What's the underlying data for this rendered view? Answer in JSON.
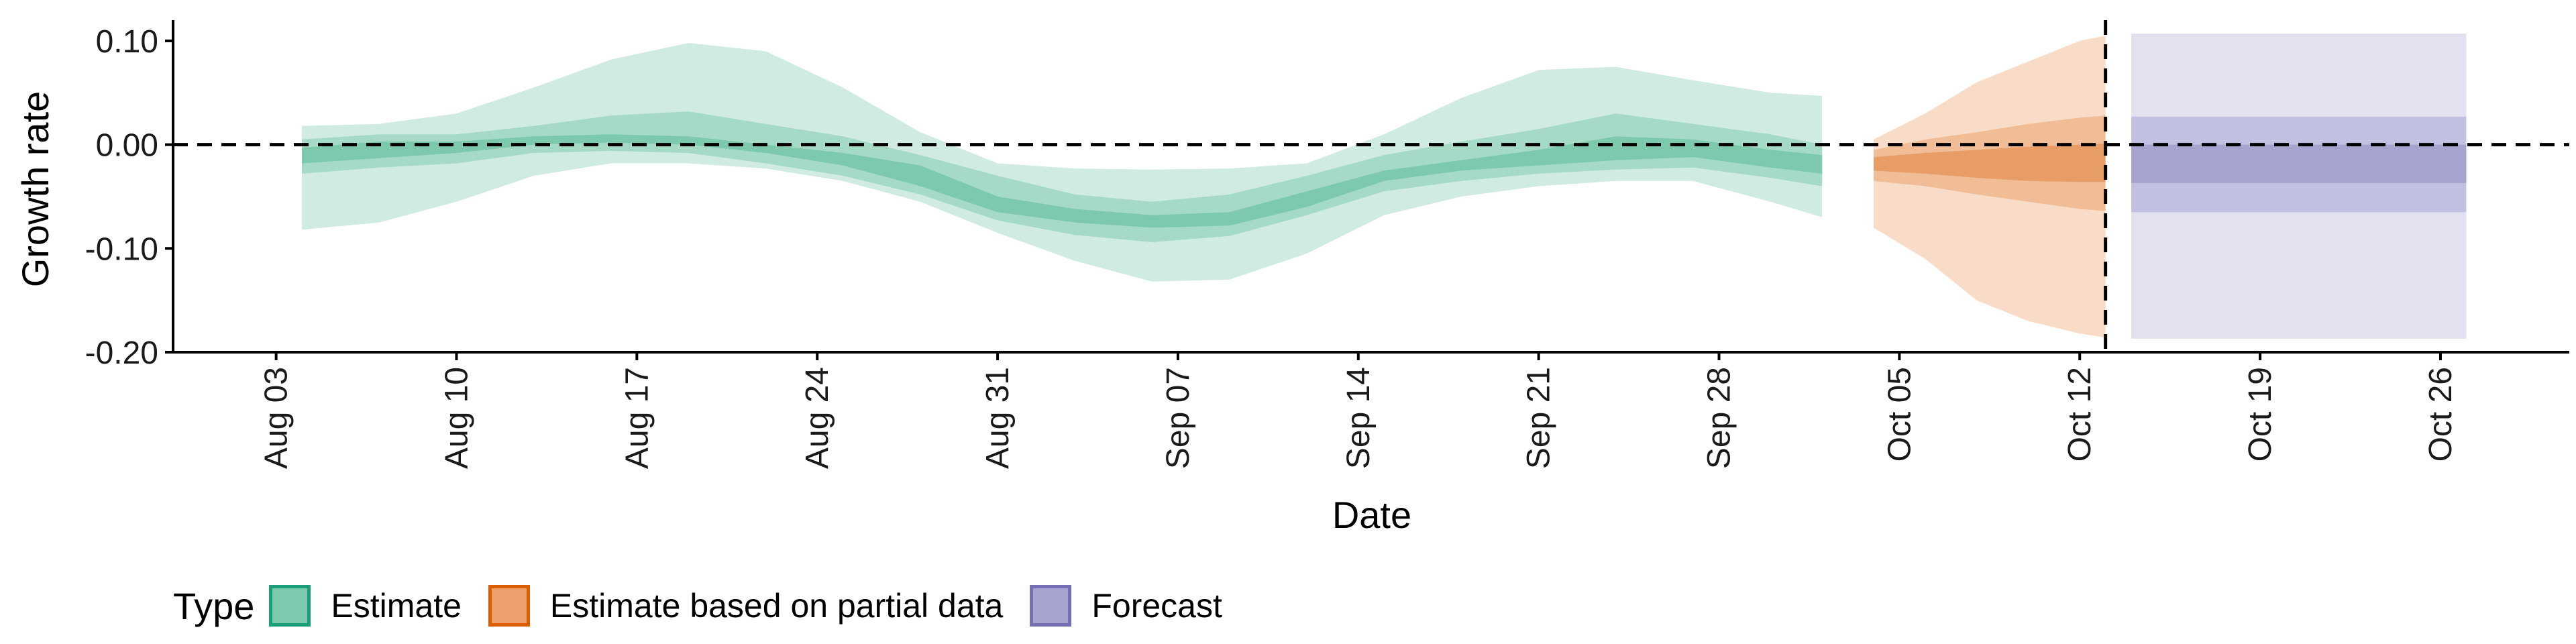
{
  "chart_data": {
    "type": "area",
    "xlabel": "Date",
    "ylabel": "Growth rate",
    "ylim": [
      -0.2,
      0.12
    ],
    "y_ticks": [
      0.1,
      0.0,
      -0.1,
      -0.2
    ],
    "y_tick_labels": [
      "0.10",
      "0.00",
      "-0.10",
      "-0.20"
    ],
    "x_ticks": [
      "2020-08-03",
      "2020-08-10",
      "2020-08-17",
      "2020-08-24",
      "2020-08-31",
      "2020-09-07",
      "2020-09-14",
      "2020-09-21",
      "2020-09-28",
      "2020-10-05",
      "2020-10-12",
      "2020-10-19",
      "2020-10-26"
    ],
    "x_tick_labels": [
      "Aug 03",
      "Aug 10",
      "Aug 17",
      "Aug 24",
      "Aug 31",
      "Sep 07",
      "Sep 14",
      "Sep 21",
      "Sep 28",
      "Oct 05",
      "Oct 12",
      "Oct 19",
      "Oct 26"
    ],
    "xlim": [
      "2020-07-30",
      "2020-10-31"
    ],
    "hline_y": 0,
    "vline_x": "2020-10-13",
    "legend": {
      "title": "Type",
      "position": "bottom",
      "items": [
        {
          "label": "Estimate",
          "fill": "#7cc9ad",
          "stroke": "#1b9e77"
        },
        {
          "label": "Estimate based on partial data",
          "fill": "#eca06b",
          "stroke": "#d95f02"
        },
        {
          "label": "Forecast",
          "fill": "#a7a4cf",
          "stroke": "#7570b3"
        }
      ]
    },
    "series": [
      {
        "name": "Estimate",
        "colors": {
          "outer": "#d0ebe2",
          "mid": "#a4dac6",
          "inner": "#7cc9ad"
        },
        "x": [
          "2020-08-04",
          "2020-08-07",
          "2020-08-10",
          "2020-08-13",
          "2020-08-16",
          "2020-08-19",
          "2020-08-22",
          "2020-08-25",
          "2020-08-28",
          "2020-08-31",
          "2020-09-03",
          "2020-09-06",
          "2020-09-09",
          "2020-09-12",
          "2020-09-15",
          "2020-09-18",
          "2020-09-21",
          "2020-09-24",
          "2020-09-27",
          "2020-09-30",
          "2020-10-02"
        ],
        "outer_upper": [
          0.018,
          0.02,
          0.03,
          0.055,
          0.082,
          0.098,
          0.09,
          0.055,
          0.012,
          -0.018,
          -0.023,
          -0.024,
          -0.023,
          -0.018,
          0.01,
          0.045,
          0.072,
          0.075,
          0.062,
          0.05,
          0.047
        ],
        "mid_upper": [
          0.005,
          0.01,
          0.01,
          0.018,
          0.028,
          0.032,
          0.02,
          0.008,
          -0.01,
          -0.03,
          -0.048,
          -0.055,
          -0.048,
          -0.03,
          -0.01,
          0.003,
          0.015,
          0.03,
          0.02,
          0.01,
          0.0
        ],
        "inner_upper": [
          -0.003,
          0.003,
          0.003,
          0.008,
          0.01,
          0.008,
          0.0,
          -0.008,
          -0.02,
          -0.05,
          -0.062,
          -0.068,
          -0.065,
          -0.045,
          -0.025,
          -0.015,
          -0.005,
          0.008,
          0.005,
          -0.005,
          -0.01
        ],
        "inner_lower": [
          -0.018,
          -0.013,
          -0.008,
          0.0,
          0.002,
          0.0,
          -0.008,
          -0.02,
          -0.04,
          -0.065,
          -0.075,
          -0.08,
          -0.078,
          -0.06,
          -0.035,
          -0.025,
          -0.02,
          -0.015,
          -0.012,
          -0.022,
          -0.028
        ],
        "mid_lower": [
          -0.028,
          -0.022,
          -0.018,
          -0.008,
          -0.006,
          -0.008,
          -0.018,
          -0.03,
          -0.048,
          -0.073,
          -0.087,
          -0.094,
          -0.088,
          -0.068,
          -0.045,
          -0.035,
          -0.028,
          -0.024,
          -0.022,
          -0.032,
          -0.04
        ],
        "outer_lower": [
          -0.082,
          -0.075,
          -0.055,
          -0.03,
          -0.018,
          -0.018,
          -0.023,
          -0.035,
          -0.055,
          -0.085,
          -0.112,
          -0.132,
          -0.13,
          -0.105,
          -0.068,
          -0.05,
          -0.04,
          -0.035,
          -0.035,
          -0.055,
          -0.07
        ]
      },
      {
        "name": "Estimate based on partial data",
        "colors": {
          "outer": "#f8dcc8",
          "mid": "#f1bd96",
          "inner": "#e89c66"
        },
        "x": [
          "2020-10-04",
          "2020-10-06",
          "2020-10-08",
          "2020-10-10",
          "2020-10-12",
          "2020-10-13"
        ],
        "outer_upper": [
          0.005,
          0.03,
          0.06,
          0.08,
          0.1,
          0.105
        ],
        "mid_upper": [
          -0.005,
          0.005,
          0.012,
          0.02,
          0.026,
          0.028
        ],
        "inner_upper": [
          -0.012,
          -0.008,
          -0.005,
          -0.002,
          0.0,
          0.001
        ],
        "inner_lower": [
          -0.025,
          -0.028,
          -0.032,
          -0.035,
          -0.036,
          -0.036
        ],
        "mid_lower": [
          -0.035,
          -0.04,
          -0.048,
          -0.055,
          -0.062,
          -0.064
        ],
        "outer_lower": [
          -0.08,
          -0.11,
          -0.15,
          -0.17,
          -0.182,
          -0.186
        ]
      },
      {
        "name": "Forecast",
        "colors": {
          "outer": "#e2e1f0",
          "mid": "#c2c0e0",
          "inner": "#a7a4cf"
        },
        "x": [
          "2020-10-14",
          "2020-10-27"
        ],
        "outer_upper": [
          0.107,
          0.107
        ],
        "mid_upper": [
          0.027,
          0.027
        ],
        "inner_upper": [
          0.0,
          0.0
        ],
        "inner_lower": [
          -0.037,
          -0.037
        ],
        "mid_lower": [
          -0.065,
          -0.065
        ],
        "outer_lower": [
          -0.187,
          -0.187
        ]
      }
    ]
  }
}
